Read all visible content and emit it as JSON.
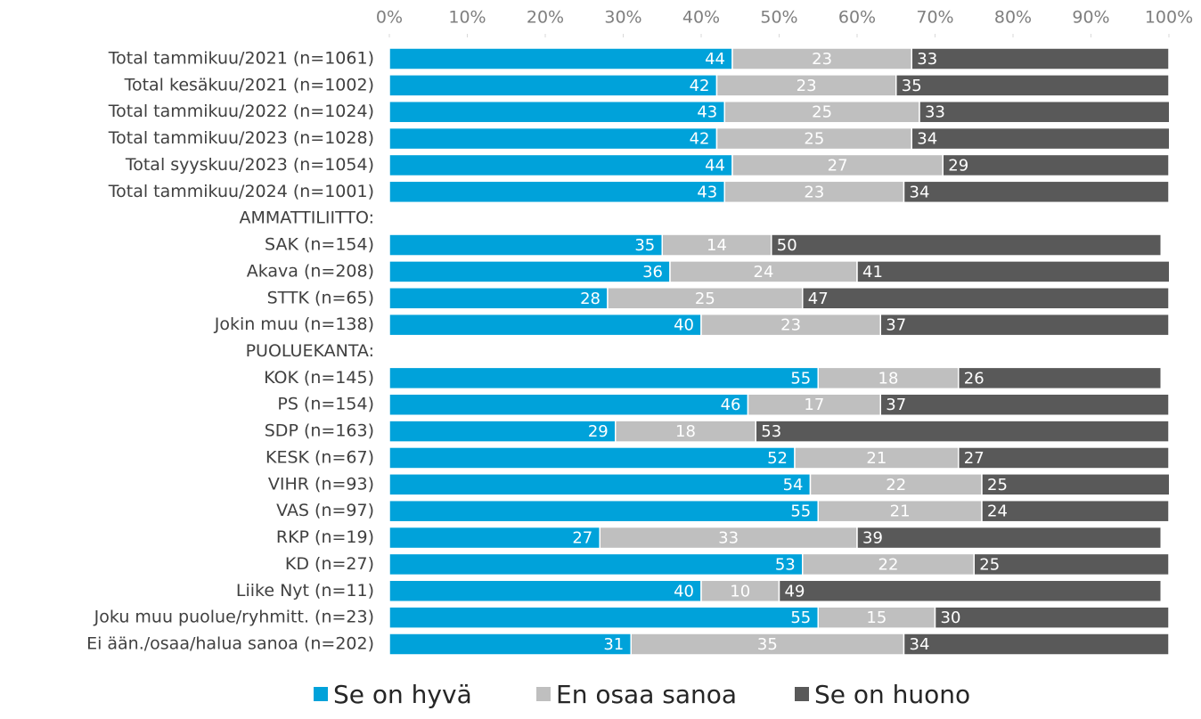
{
  "chart_data": {
    "type": "stacked_barh",
    "categories": [
      "Total tammikuu/2021 (n=1061)",
      "Total kesäkuu/2021 (n=1002)",
      "Total tammikuu/2022 (n=1024)",
      "Total tammikuu/2023 (n=1028)",
      "Total syyskuu/2023 (n=1054)",
      "Total tammikuu/2024 (n=1001)",
      "AMMATTILIITTO:",
      "SAK (n=154)",
      "Akava (n=208)",
      "STTK (n=65)",
      "Jokin muu (n=138)",
      "PUOLUEKANTA:",
      "KOK (n=145)",
      "PS (n=154)",
      "SDP (n=163)",
      "KESK (n=67)",
      "VIHR (n=93)",
      "VAS (n=97)",
      "RKP (n=19)",
      "KD (n=27)",
      "Liike Nyt (n=11)",
      "Joku muu puolue/ryhmitt. (n=23)",
      "Ei ään./osaa/halua sanoa (n=202)"
    ],
    "series": [
      {
        "name": "Se on hyvä",
        "color": "#00a2da",
        "values": [
          44,
          42,
          43,
          42,
          44,
          43,
          null,
          35,
          36,
          28,
          40,
          null,
          55,
          46,
          29,
          52,
          54,
          55,
          27,
          53,
          40,
          55,
          31
        ]
      },
      {
        "name": "En osaa sanoa",
        "color": "#bfbfbf",
        "values": [
          23,
          23,
          25,
          25,
          27,
          23,
          null,
          14,
          24,
          25,
          23,
          null,
          18,
          17,
          18,
          21,
          22,
          21,
          33,
          22,
          10,
          15,
          35
        ]
      },
      {
        "name": "Se on huono",
        "color": "#595959",
        "values": [
          33,
          35,
          33,
          34,
          29,
          34,
          null,
          50,
          41,
          47,
          37,
          null,
          26,
          37,
          53,
          27,
          25,
          24,
          39,
          25,
          49,
          30,
          34
        ]
      }
    ],
    "xlim": [
      0,
      100
    ],
    "xticks": [
      {
        "value": 0,
        "label": "0%"
      },
      {
        "value": 10,
        "label": "10%"
      },
      {
        "value": 20,
        "label": "20%"
      },
      {
        "value": 30,
        "label": "30%"
      },
      {
        "value": 40,
        "label": "40%"
      },
      {
        "value": 50,
        "label": "50%"
      },
      {
        "value": 60,
        "label": "60%"
      },
      {
        "value": 70,
        "label": "70%"
      },
      {
        "value": 80,
        "label": "80%"
      },
      {
        "value": 90,
        "label": "90%"
      },
      {
        "value": 100,
        "label": "100%"
      }
    ],
    "legend": "bottom"
  }
}
